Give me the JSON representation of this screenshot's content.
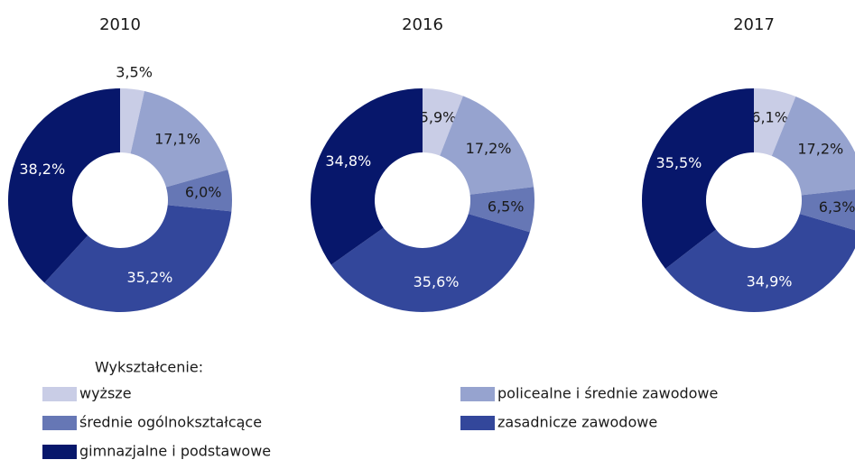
{
  "legend": {
    "title": "Wykształcenie:",
    "categories": [
      "wyższe",
      "policealne i średnie zawodowe",
      "średnie ogólnokształcące",
      "zasadnicze zawodowe",
      "gimnazjalne i podstawowe"
    ],
    "colors": [
      "#c9cde6",
      "#96a3cf",
      "#6677b5",
      "#33479b",
      "#07176b"
    ]
  },
  "chart_data": [
    {
      "type": "pie",
      "title": "2010",
      "values": [
        3.5,
        17.1,
        6.0,
        35.2,
        38.2
      ],
      "value_labels": [
        "3,5%",
        "17,1%",
        "6,0%",
        "35,2%",
        "38,2%"
      ]
    },
    {
      "type": "pie",
      "title": "2016",
      "values": [
        5.9,
        17.2,
        6.5,
        35.6,
        34.8
      ],
      "value_labels": [
        "5,9%",
        "17,2%",
        "6,5%",
        "35,6%",
        "34,8%"
      ]
    },
    {
      "type": "pie",
      "title": "2017",
      "values": [
        6.1,
        17.2,
        6.3,
        34.9,
        35.5
      ],
      "value_labels": [
        "6,1%",
        "17,2%",
        "6,3%",
        "34,9%",
        "35,5%"
      ]
    }
  ]
}
